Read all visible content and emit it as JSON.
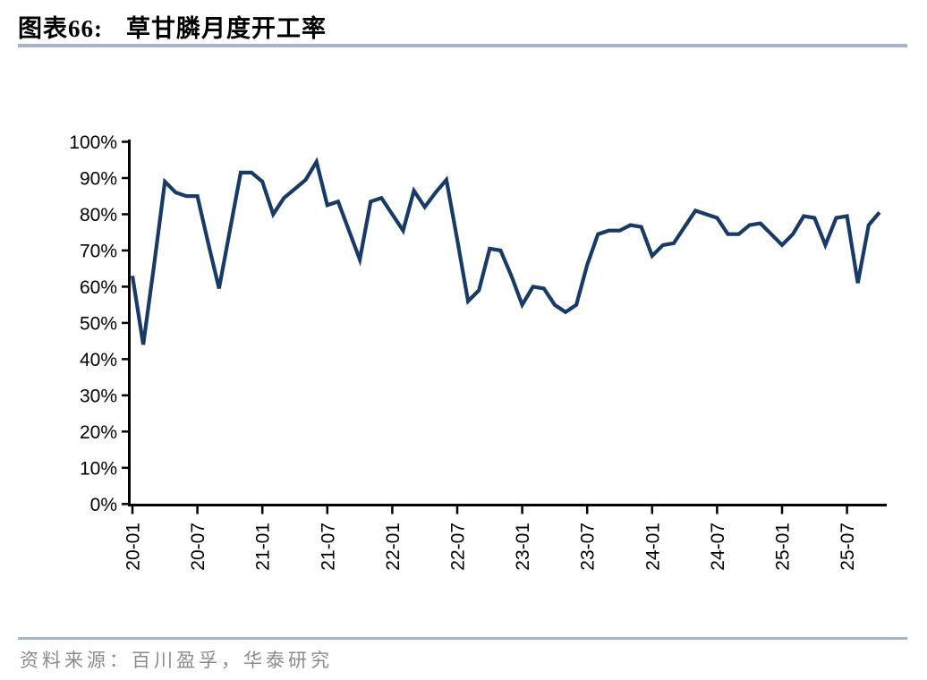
{
  "header": {
    "title_prefix": "图表66:",
    "title_text": "草甘膦月度开工率"
  },
  "footer": {
    "source": "资料来源：百川盈孚，华泰研究"
  },
  "chart_data": {
    "type": "line",
    "title": "草甘膦月度开工率",
    "unit": "%",
    "grid": false,
    "legend_position": "none",
    "line_color": "#173A66",
    "axis_color": "#000000",
    "ylim": [
      0,
      100
    ],
    "y_tick_labels": [
      "0%",
      "10%",
      "20%",
      "30%",
      "40%",
      "50%",
      "60%",
      "70%",
      "80%",
      "90%",
      "100%"
    ],
    "x_tick_labels": [
      "20-01",
      "20-07",
      "21-01",
      "21-07",
      "22-01",
      "22-07",
      "23-01",
      "23-07",
      "24-01",
      "24-07",
      "25-01",
      "25-07"
    ],
    "x": [
      "20-01",
      "20-02",
      "20-03",
      "20-04",
      "20-05",
      "20-06",
      "20-07",
      "20-08",
      "20-09",
      "20-10",
      "20-11",
      "20-12",
      "21-01",
      "21-02",
      "21-03",
      "21-04",
      "21-05",
      "21-06",
      "21-07",
      "21-08",
      "21-09",
      "21-10",
      "21-11",
      "21-12",
      "22-01",
      "22-02",
      "22-03",
      "22-04",
      "22-05",
      "22-06",
      "22-07",
      "22-08",
      "22-09",
      "22-10",
      "22-11",
      "22-12",
      "23-01",
      "23-02",
      "23-03",
      "23-04",
      "23-05",
      "23-06",
      "23-07",
      "23-08",
      "23-09",
      "23-10",
      "23-11",
      "23-12",
      "24-01",
      "24-02",
      "24-03",
      "24-04",
      "24-05",
      "24-06",
      "24-07",
      "24-08",
      "24-09",
      "24-10",
      "24-11",
      "24-12",
      "25-01",
      "25-02",
      "25-03",
      "25-04",
      "25-05",
      "25-06",
      "25-07",
      "25-08",
      "25-09",
      "25-10"
    ],
    "values": [
      63,
      44,
      66,
      89,
      86,
      85,
      85,
      72,
      59.5,
      75.5,
      91.5,
      91.5,
      89,
      80,
      84.5,
      87,
      89.5,
      94.5,
      82.5,
      83.5,
      75.5,
      67.5,
      83.5,
      84.5,
      80,
      75.5,
      86.5,
      82,
      86,
      89.5,
      73,
      56,
      59,
      70.5,
      70,
      63,
      55,
      60,
      59.5,
      55,
      53,
      55,
      66,
      74.5,
      75.5,
      75.5,
      77,
      76.5,
      68.5,
      71.5,
      72,
      76.5,
      81,
      80,
      79,
      74.5,
      74.5,
      77,
      77.5,
      74.5,
      71.5,
      74.5,
      79.5,
      79,
      71.5,
      79,
      79.5,
      61,
      77,
      80.5
    ]
  }
}
